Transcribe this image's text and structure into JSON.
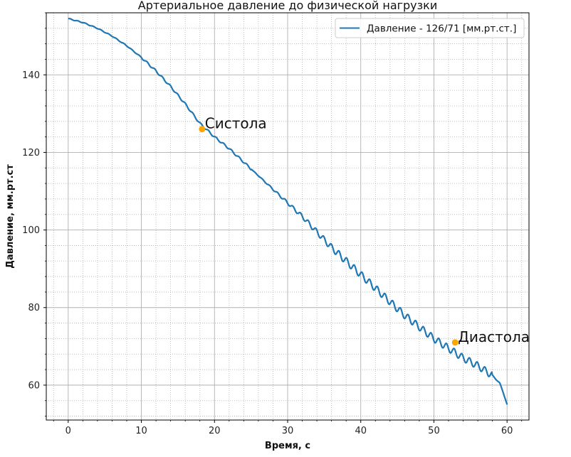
{
  "chart_data": {
    "type": "line",
    "title": "Артериальное давление до физической нагрузки",
    "xlabel": "Время, с",
    "ylabel": "Давление, мм.рт.ст",
    "xlim": [
      -3,
      63
    ],
    "ylim": [
      51,
      156
    ],
    "xticks": [
      0,
      10,
      20,
      30,
      40,
      50,
      60
    ],
    "xtick_labels": [
      "0",
      "10",
      "20",
      "30",
      "40",
      "50",
      "60"
    ],
    "yticks": [
      60,
      80,
      100,
      120,
      140
    ],
    "ytick_labels": [
      "60",
      "80",
      "100",
      "120",
      "140"
    ],
    "grid": "major solid, minor dotted",
    "legend_position": "top-right",
    "series": [
      {
        "name": "Давление - 126/71 [мм.рт.ст.]",
        "color": "#1f77b4",
        "x": [
          0,
          2,
          4,
          6,
          8,
          10,
          12,
          14,
          16,
          18,
          20,
          22,
          24,
          26,
          28,
          30,
          32,
          34,
          36,
          38,
          40,
          42,
          44,
          46,
          48,
          50,
          52,
          54,
          56,
          58,
          59,
          59.5,
          60
        ],
        "y": [
          154.5,
          153.5,
          152,
          150,
          147.5,
          144.5,
          141,
          137,
          132.5,
          127.5,
          124,
          121,
          117.5,
          114,
          110.5,
          107,
          103.5,
          99.5,
          95.5,
          92,
          88.5,
          85,
          81.5,
          78,
          75,
          72,
          69.5,
          67,
          65,
          62.5,
          60.5,
          58,
          55
        ]
      }
    ],
    "annotations": [
      {
        "label": "Систола",
        "x": 18.3,
        "y": 126,
        "color": "#ffa500"
      },
      {
        "label": "Диастола",
        "x": 52.9,
        "y": 71,
        "color": "#ffa500"
      }
    ]
  }
}
